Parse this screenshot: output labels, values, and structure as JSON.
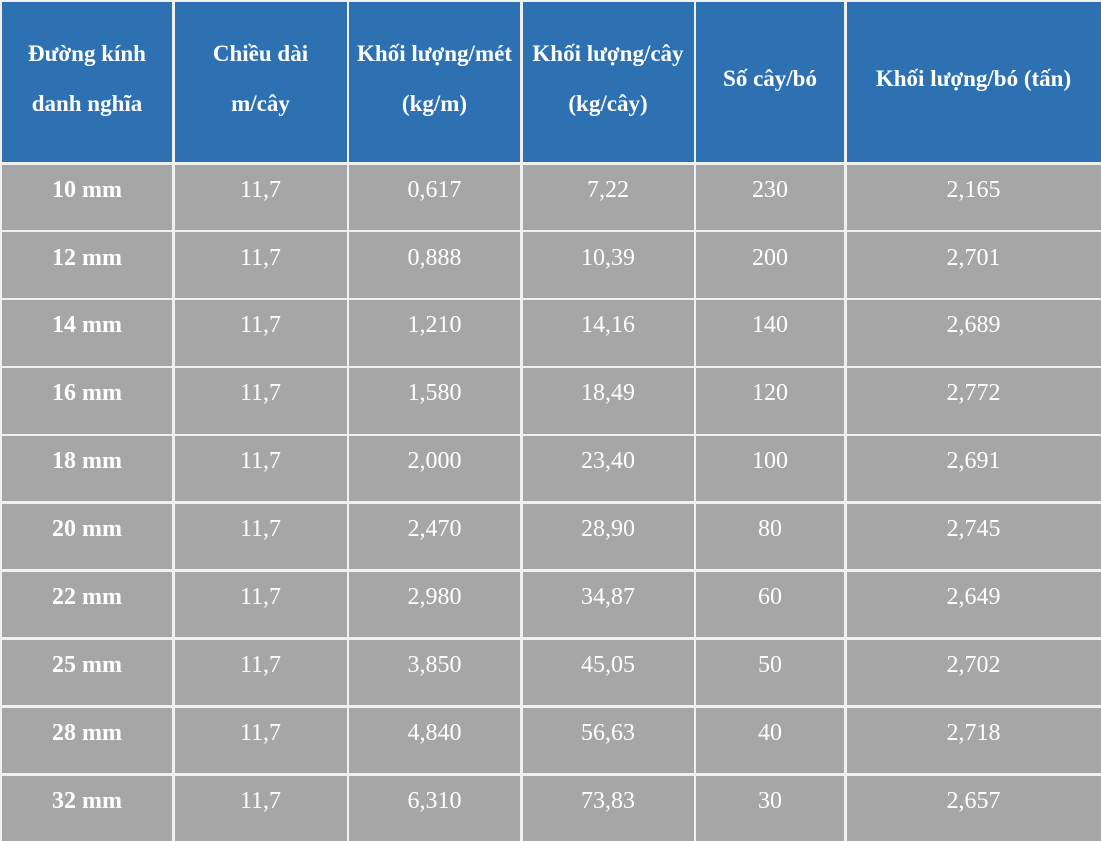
{
  "table": {
    "headers": [
      "Đường kính danh nghĩa",
      "Chiều dài m/cây",
      "Khối lượng/mét (kg/m)",
      "Khối lượng/cây (kg/cây)",
      "Số cây/bó",
      "Khối lượng/bó (tấn)"
    ],
    "rows": [
      [
        "10 mm",
        "11,7",
        "0,617",
        "7,22",
        "230",
        "2,165"
      ],
      [
        "12 mm",
        "11,7",
        "0,888",
        "10,39",
        "200",
        "2,701"
      ],
      [
        "14 mm",
        "11,7",
        "1,210",
        "14,16",
        "140",
        "2,689"
      ],
      [
        "16 mm",
        "11,7",
        "1,580",
        "18,49",
        "120",
        "2,772"
      ],
      [
        "18 mm",
        "11,7",
        "2,000",
        "23,40",
        "100",
        "2,691"
      ],
      [
        "20 mm",
        "11,7",
        "2,470",
        "28,90",
        "80",
        "2,745"
      ],
      [
        "22 mm",
        "11,7",
        "2,980",
        "34,87",
        "60",
        "2,649"
      ],
      [
        "25 mm",
        "11,7",
        "3,850",
        "45,05",
        "50",
        "2,702"
      ],
      [
        "28 mm",
        "11,7",
        "4,840",
        "56,63",
        "40",
        "2,718"
      ],
      [
        "32 mm",
        "11,7",
        "6,310",
        "73,83",
        "30",
        "2,657"
      ]
    ],
    "colors": {
      "header": "#2e71b3",
      "body": "#a6a6a6",
      "border": "#f0f0f0",
      "text": "#ffffff"
    }
  }
}
